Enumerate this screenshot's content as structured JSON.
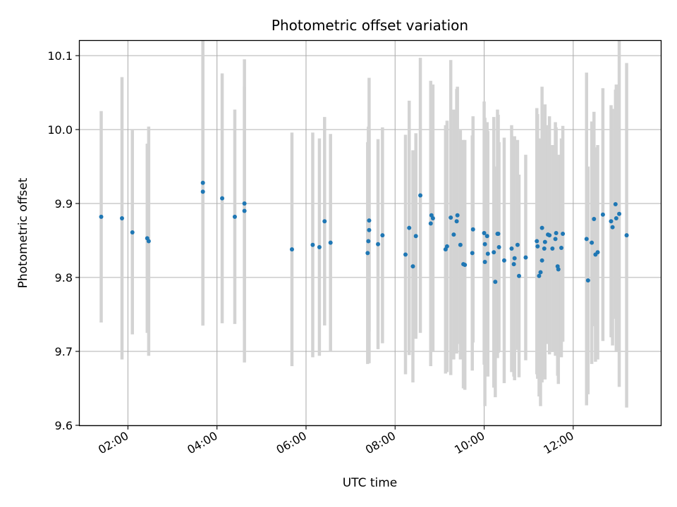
{
  "chart_data": {
    "type": "scatter",
    "title": "Photometric offset variation",
    "xlabel": "UTC time",
    "ylabel": "Photometric offset",
    "xlim": [
      "00:55",
      "13:58"
    ],
    "ylim": [
      9.6,
      10.12
    ],
    "xticks": [
      "02:00",
      "04:00",
      "06:00",
      "08:00",
      "10:00",
      "12:00"
    ],
    "yticks": [
      "9.6",
      "9.7",
      "9.8",
      "9.9",
      "10.0",
      "10.1"
    ],
    "grid": true,
    "colors": {
      "points": "#1f77b4",
      "errorbars": "#d3d3d3",
      "grid": "#b0b0b0"
    },
    "series": [
      {
        "x": [
          "01:24",
          "01:52",
          "02:06",
          "02:26",
          "02:28",
          "03:41",
          "03:41",
          "04:07",
          "04:24",
          "04:37",
          "04:37",
          "05:41",
          "06:09",
          "06:18",
          "06:25",
          "06:33",
          "07:23",
          "07:24",
          "07:25",
          "07:25",
          "07:37",
          "07:43",
          "08:14",
          "08:19",
          "08:24",
          "08:28",
          "08:34",
          "08:48",
          "08:49",
          "08:51",
          "09:08",
          "09:10",
          "09:15",
          "09:19",
          "09:23",
          "09:24",
          "09:28",
          "09:32",
          "09:34",
          "09:44",
          "09:45",
          "10:00",
          "10:01",
          "10:01",
          "10:04",
          "10:05",
          "10:13",
          "10:15",
          "10:18",
          "10:19",
          "10:20",
          "10:27",
          "10:37",
          "10:40",
          "10:41",
          "10:45",
          "10:47",
          "10:56",
          "11:11",
          "11:12",
          "11:14",
          "11:16",
          "11:18",
          "11:18",
          "11:21",
          "11:22",
          "11:26",
          "11:28",
          "11:32",
          "11:36",
          "11:37",
          "11:39",
          "11:40",
          "11:44",
          "11:46",
          "12:18",
          "12:20",
          "12:25",
          "12:28",
          "12:30",
          "12:33",
          "12:40",
          "12:51",
          "12:53",
          "12:57",
          "12:58",
          "13:02",
          "13:12"
        ],
        "y": [
          9.882,
          9.88,
          9.861,
          9.853,
          9.849,
          9.928,
          9.916,
          9.907,
          9.882,
          9.9,
          9.89,
          9.838,
          9.844,
          9.841,
          9.876,
          9.847,
          9.833,
          9.849,
          9.877,
          9.864,
          9.845,
          9.857,
          9.831,
          9.867,
          9.815,
          9.856,
          9.911,
          9.873,
          9.884,
          9.88,
          9.838,
          9.842,
          9.881,
          9.858,
          9.876,
          9.884,
          9.844,
          9.818,
          9.817,
          9.833,
          9.865,
          9.86,
          9.821,
          9.845,
          9.856,
          9.832,
          9.834,
          9.794,
          9.859,
          9.859,
          9.841,
          9.823,
          9.839,
          9.818,
          9.826,
          9.844,
          9.802,
          9.827,
          9.849,
          9.842,
          9.802,
          9.807,
          9.867,
          9.823,
          9.839,
          9.848,
          9.858,
          9.857,
          9.839,
          9.852,
          9.86,
          9.815,
          9.811,
          9.84,
          9.859,
          9.852,
          9.796,
          9.847,
          9.879,
          9.831,
          9.834,
          9.885,
          9.876,
          9.868,
          9.899,
          9.88,
          9.886,
          9.857
        ],
        "yerr": [
          0.143,
          0.191,
          0.138,
          0.128,
          0.155,
          0.193,
          0.181,
          0.169,
          0.145,
          0.158,
          0.205,
          0.158,
          0.152,
          0.147,
          0.141,
          0.147,
          0.15,
          0.155,
          0.193,
          0.137,
          0.142,
          0.146,
          0.162,
          0.172,
          0.157,
          0.139,
          0.186,
          0.193,
          0.155,
          0.181,
          0.168,
          0.17,
          0.213,
          0.169,
          0.179,
          0.174,
          0.155,
          0.168,
          0.169,
          0.159,
          0.153,
          0.178,
          0.195,
          0.139,
          0.154,
          0.166,
          0.183,
          0.156,
          0.168,
          0.161,
          0.142,
          0.166,
          0.167,
          0.152,
          0.165,
          0.142,
          0.137,
          0.139,
          0.18,
          0.179,
          0.163,
          0.181,
          0.191,
          0.165,
          0.173,
          0.186,
          0.148,
          0.161,
          0.14,
          0.158,
          0.143,
          0.148,
          0.155,
          0.148,
          0.146,
          0.225,
          0.154,
          0.164,
          0.145,
          0.145,
          0.145,
          0.171,
          0.157,
          0.16,
          0.155,
          0.181,
          0.234,
          0.233
        ]
      }
    ]
  }
}
